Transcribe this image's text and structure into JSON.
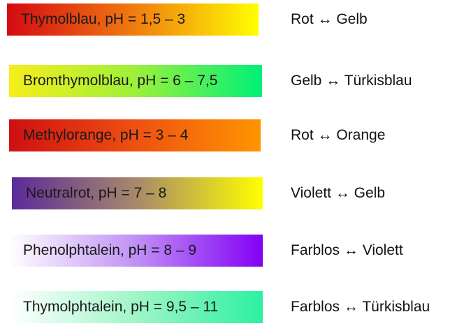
{
  "indicators": [
    {
      "label": "Thymolblau, pH = 1,5 – 3",
      "change": "Rot ↔  Gelb",
      "gradient_colors": [
        "#d40a12",
        "#f07a10",
        "#ffff00"
      ]
    },
    {
      "label": "Bromthymolblau, pH = 6 – 7,5",
      "change": "Gelb ↔ Türkisblau",
      "gradient_colors": [
        "#f7ee1c",
        "#9cf03a",
        "#00f078"
      ]
    },
    {
      "label": "Methylorange, pH = 3 – 4",
      "change": "Rot ↔ Orange",
      "gradient_colors": [
        "#cf0f12",
        "#ee5012",
        "#ff9500"
      ]
    },
    {
      "label": "Neutralrot, pH = 7 – 8",
      "change": "Violett ↔ Gelb",
      "gradient_colors": [
        "#5b2a9a",
        "#a88a6a",
        "#ffff00"
      ]
    },
    {
      "label": "Phenolphtalein, pH = 8 – 9",
      "change": "Farblos ↔ Violett",
      "gradient_colors": [
        "#ffffff",
        "#c090f5",
        "#8200f5"
      ]
    },
    {
      "label": "Thymolphtalein, pH = 9,5 – 11",
      "change": "Farblos ↔ Türkisblau",
      "gradient_colors": [
        "#ffffff",
        "#a0f5c8",
        "#2df0a0"
      ]
    }
  ]
}
